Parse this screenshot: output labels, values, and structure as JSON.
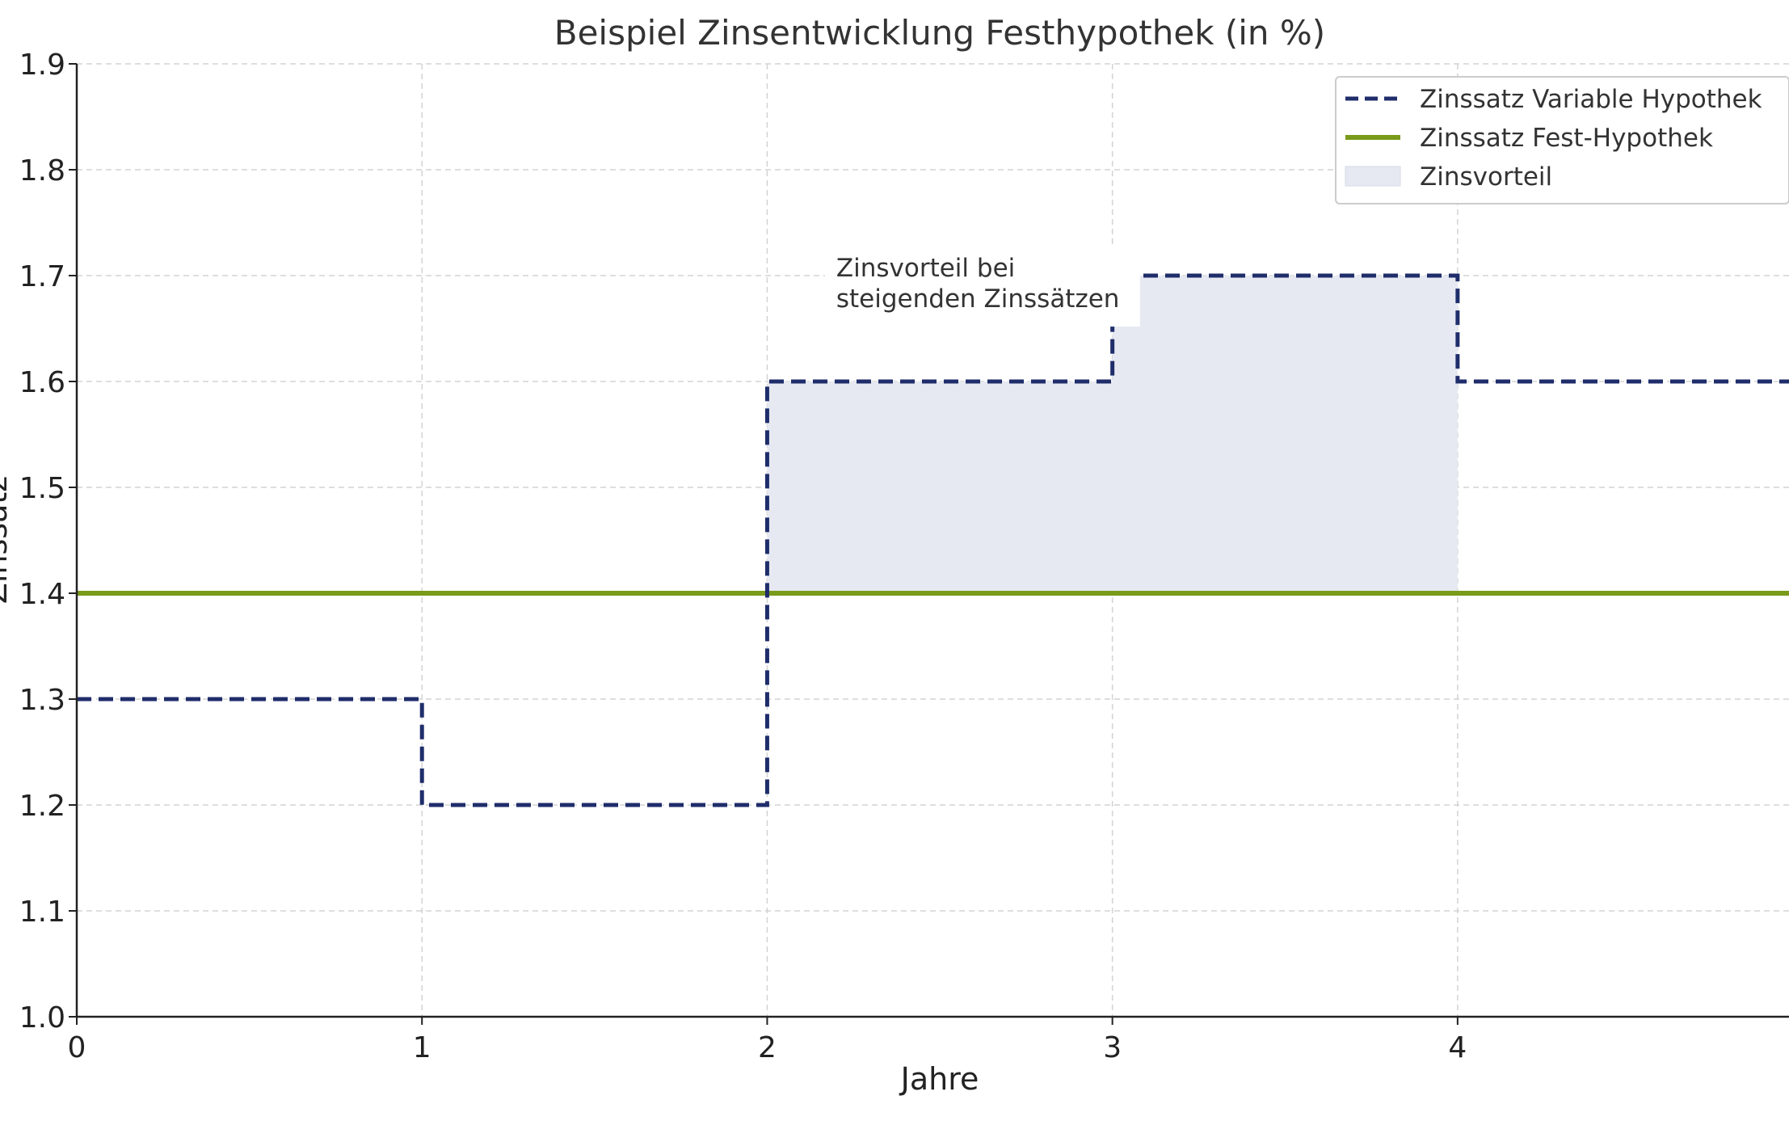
{
  "chart_data": {
    "type": "line",
    "title": "Beispiel Zinsentwicklung Festhypothek (in %)",
    "xlabel": "Jahre",
    "ylabel": "Zinssatz",
    "xlim": [
      0,
      4.96
    ],
    "ylim": [
      1.0,
      1.9
    ],
    "x_ticks": [
      0,
      1,
      2,
      3,
      4
    ],
    "y_ticks": [
      1.0,
      1.1,
      1.2,
      1.3,
      1.4,
      1.5,
      1.6,
      1.7,
      1.8,
      1.9
    ],
    "grid": true,
    "legend_position": "top-right",
    "series": [
      {
        "name": "Zinssatz Variable Hypothek",
        "style": "dashed-step",
        "color": "#1f2d6b",
        "x": [
          0,
          1,
          2,
          3,
          4,
          4.96
        ],
        "values": [
          1.3,
          1.2,
          1.6,
          1.7,
          1.6,
          1.6
        ]
      },
      {
        "name": "Zinssatz Fest-Hypothek",
        "style": "solid",
        "color": "#7a9a1a",
        "x": [
          0,
          4.96
        ],
        "values": [
          1.4,
          1.4
        ]
      }
    ],
    "fill": {
      "name": "Zinsvorteil",
      "color": "#e6e9f1",
      "between": "Zinssatz Variable Hypothek and Zinssatz Fest-Hypothek",
      "x_range": [
        2,
        4
      ]
    },
    "annotation": {
      "text_lines": [
        "Zinsvorteil bei",
        "steigenden Zinssätzen"
      ],
      "x": 2.2,
      "y": 1.69
    }
  }
}
